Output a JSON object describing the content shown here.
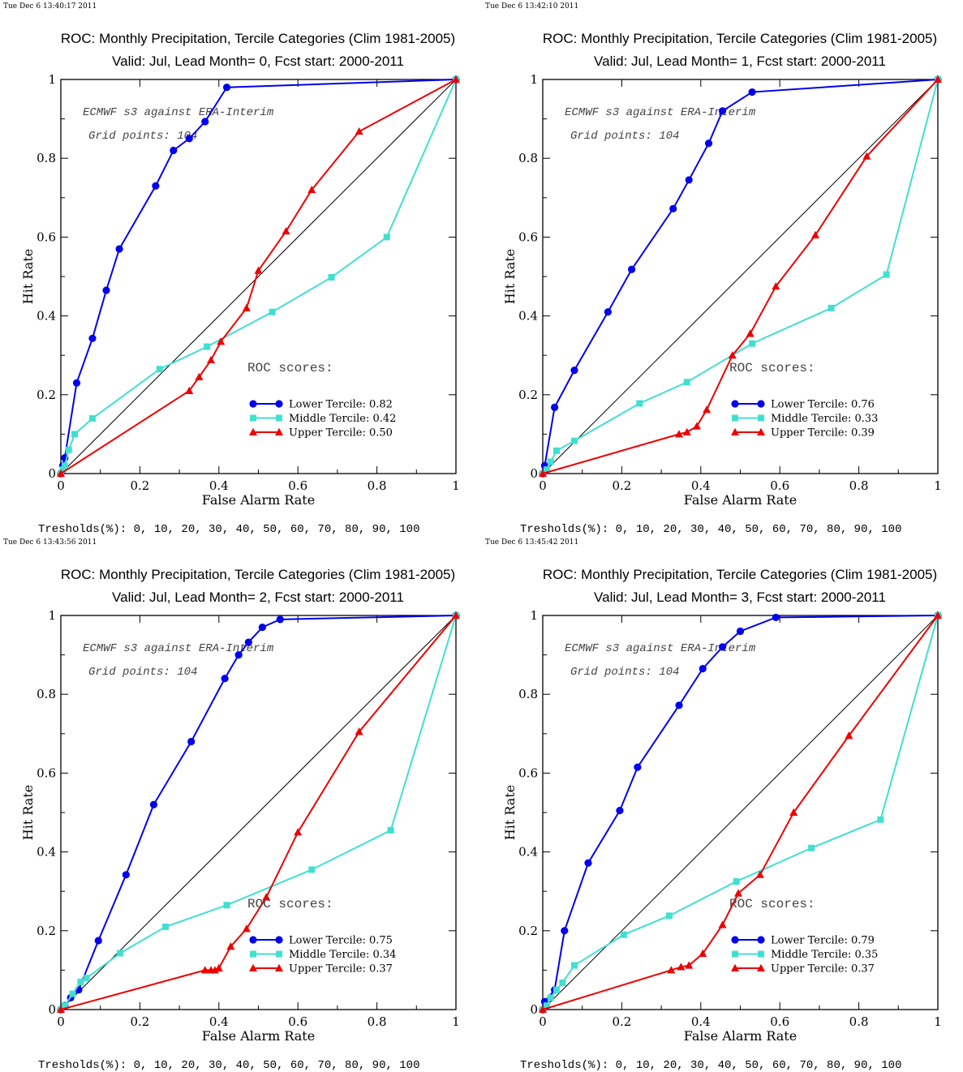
{
  "colors": {
    "lower": "#0000ee",
    "middle": "#40e0d0",
    "upper": "#ee0000",
    "diagonal": "#000000"
  },
  "chart_data": [
    {
      "type": "line",
      "timestamp": "Tue Dec  6 13:40:17 2011",
      "title": "ROC: Monthly Precipitation, Tercile Categories (Clim 1981-2005)",
      "subtitle": "Valid: Jul, Lead Month= 0, Fcst start: 2000-2011",
      "xlabel": "False Alarm Rate",
      "ylabel": "Hit Rate",
      "xlim": [
        0,
        1
      ],
      "ylim": [
        0,
        1
      ],
      "xticks": [
        "0",
        "0.2",
        "0.4",
        "0.6",
        "0.8",
        "1"
      ],
      "yticks": [
        "0",
        "0.2",
        "0.4",
        "0.6",
        "0.8",
        "1"
      ],
      "annotation_model": "ECMWF s3 against ERA-Interim",
      "annotation_grid": "Grid points:  104",
      "roc_header": "ROC scores:",
      "thresholds": "Tresholds(%): 0, 10, 20, 30, 40, 50, 60, 70, 80, 90, 100",
      "series": [
        {
          "name": "Lower Tercile: 0.82",
          "marker": "circle",
          "color": "#0000ee",
          "points": [
            [
              0,
              0
            ],
            [
              0.005,
              0.02
            ],
            [
              0.01,
              0.04
            ],
            [
              0.04,
              0.23
            ],
            [
              0.08,
              0.343
            ],
            [
              0.115,
              0.465
            ],
            [
              0.148,
              0.57
            ],
            [
              0.24,
              0.73
            ],
            [
              0.285,
              0.82
            ],
            [
              0.325,
              0.85
            ],
            [
              0.365,
              0.893
            ],
            [
              0.42,
              0.98
            ],
            [
              1,
              1
            ]
          ]
        },
        {
          "name": "Middle Tercile: 0.42",
          "marker": "square",
          "color": "#40e0d0",
          "points": [
            [
              0,
              0
            ],
            [
              0.005,
              0.01
            ],
            [
              0.01,
              0.02
            ],
            [
              0.02,
              0.06
            ],
            [
              0.035,
              0.1
            ],
            [
              0.08,
              0.14
            ],
            [
              0.25,
              0.265
            ],
            [
              0.37,
              0.322
            ],
            [
              0.535,
              0.41
            ],
            [
              0.685,
              0.498
            ],
            [
              0.825,
              0.6
            ],
            [
              1,
              1
            ]
          ]
        },
        {
          "name": "Upper Tercile: 0.50",
          "marker": "triangle",
          "color": "#ee0000",
          "points": [
            [
              0,
              0
            ],
            [
              0.325,
              0.21
            ],
            [
              0.35,
              0.245
            ],
            [
              0.38,
              0.288
            ],
            [
              0.405,
              0.335
            ],
            [
              0.47,
              0.42
            ],
            [
              0.5,
              0.515
            ],
            [
              0.57,
              0.615
            ],
            [
              0.635,
              0.72
            ],
            [
              0.755,
              0.868
            ],
            [
              1,
              1
            ]
          ]
        }
      ]
    },
    {
      "type": "line",
      "timestamp": "Tue Dec  6 13:42:10 2011",
      "title": "ROC: Monthly Precipitation, Tercile Categories (Clim 1981-2005)",
      "subtitle": "Valid: Jul, Lead Month= 1, Fcst start: 2000-2011",
      "xlabel": "False Alarm Rate",
      "ylabel": "Hit Rate",
      "xlim": [
        0,
        1
      ],
      "ylim": [
        0,
        1
      ],
      "xticks": [
        "0",
        "0.2",
        "0.4",
        "0.6",
        "0.8",
        "1"
      ],
      "yticks": [
        "0",
        "0.2",
        "0.4",
        "0.6",
        "0.8",
        "1"
      ],
      "annotation_model": "ECMWF s3 against ERA-Interim",
      "annotation_grid": "Grid points:  104",
      "roc_header": "ROC scores:",
      "thresholds": "Tresholds(%): 0, 10, 20, 30, 40, 50, 60, 70, 80, 90, 100",
      "series": [
        {
          "name": "Lower Tercile: 0.76",
          "marker": "circle",
          "color": "#0000ee",
          "points": [
            [
              0,
              0
            ],
            [
              0.005,
              0.02
            ],
            [
              0.03,
              0.168
            ],
            [
              0.08,
              0.262
            ],
            [
              0.165,
              0.41
            ],
            [
              0.225,
              0.518
            ],
            [
              0.33,
              0.672
            ],
            [
              0.37,
              0.745
            ],
            [
              0.42,
              0.838
            ],
            [
              0.455,
              0.92
            ],
            [
              0.53,
              0.968
            ],
            [
              1,
              1
            ]
          ]
        },
        {
          "name": "Middle Tercile: 0.33",
          "marker": "square",
          "color": "#40e0d0",
          "points": [
            [
              0,
              0
            ],
            [
              0.01,
              0.01
            ],
            [
              0.02,
              0.03
            ],
            [
              0.035,
              0.058
            ],
            [
              0.08,
              0.083
            ],
            [
              0.245,
              0.178
            ],
            [
              0.365,
              0.232
            ],
            [
              0.53,
              0.33
            ],
            [
              0.73,
              0.42
            ],
            [
              0.87,
              0.505
            ],
            [
              1,
              1
            ]
          ]
        },
        {
          "name": "Upper Tercile: 0.39",
          "marker": "triangle",
          "color": "#ee0000",
          "points": [
            [
              0,
              0
            ],
            [
              0.345,
              0.1
            ],
            [
              0.365,
              0.105
            ],
            [
              0.39,
              0.12
            ],
            [
              0.415,
              0.162
            ],
            [
              0.48,
              0.3
            ],
            [
              0.525,
              0.355
            ],
            [
              0.59,
              0.475
            ],
            [
              0.69,
              0.605
            ],
            [
              0.82,
              0.805
            ],
            [
              1,
              1
            ]
          ]
        }
      ]
    },
    {
      "type": "line",
      "timestamp": "Tue Dec  6 13:43:56 2011",
      "title": "ROC: Monthly Precipitation, Tercile Categories (Clim 1981-2005)",
      "subtitle": "Valid: Jul, Lead Month= 2, Fcst start: 2000-2011",
      "xlabel": "False Alarm Rate",
      "ylabel": "Hit Rate",
      "xlim": [
        0,
        1
      ],
      "ylim": [
        0,
        1
      ],
      "xticks": [
        "0",
        "0.2",
        "0.4",
        "0.6",
        "0.8",
        "1"
      ],
      "yticks": [
        "0",
        "0.2",
        "0.4",
        "0.6",
        "0.8",
        "1"
      ],
      "annotation_model": "ECMWF s3 against ERA-Interim",
      "annotation_grid": "Grid points:  104",
      "roc_header": "ROC scores:",
      "thresholds": "Tresholds(%): 0, 10, 20, 30, 40, 50, 60, 70, 80, 90, 100",
      "series": [
        {
          "name": "Lower Tercile: 0.75",
          "marker": "circle",
          "color": "#0000ee",
          "points": [
            [
              0,
              0
            ],
            [
              0.01,
              0.01
            ],
            [
              0.025,
              0.03
            ],
            [
              0.045,
              0.05
            ],
            [
              0.095,
              0.175
            ],
            [
              0.165,
              0.342
            ],
            [
              0.235,
              0.52
            ],
            [
              0.33,
              0.68
            ],
            [
              0.415,
              0.84
            ],
            [
              0.45,
              0.9
            ],
            [
              0.475,
              0.932
            ],
            [
              0.51,
              0.97
            ],
            [
              0.555,
              0.99
            ],
            [
              1,
              1
            ]
          ]
        },
        {
          "name": "Middle Tercile: 0.34",
          "marker": "square",
          "color": "#40e0d0",
          "points": [
            [
              0,
              0
            ],
            [
              0.01,
              0.01
            ],
            [
              0.03,
              0.04
            ],
            [
              0.05,
              0.07
            ],
            [
              0.065,
              0.08
            ],
            [
              0.15,
              0.143
            ],
            [
              0.265,
              0.21
            ],
            [
              0.42,
              0.265
            ],
            [
              0.635,
              0.355
            ],
            [
              0.835,
              0.455
            ],
            [
              1,
              1
            ]
          ]
        },
        {
          "name": "Upper Tercile: 0.37",
          "marker": "triangle",
          "color": "#ee0000",
          "points": [
            [
              0,
              0
            ],
            [
              0.365,
              0.1
            ],
            [
              0.38,
              0.1
            ],
            [
              0.39,
              0.1
            ],
            [
              0.4,
              0.105
            ],
            [
              0.43,
              0.16
            ],
            [
              0.47,
              0.205
            ],
            [
              0.52,
              0.285
            ],
            [
              0.6,
              0.45
            ],
            [
              0.755,
              0.705
            ],
            [
              1,
              1
            ]
          ]
        }
      ]
    },
    {
      "type": "line",
      "timestamp": "Tue Dec  6 13:45:42 2011",
      "title": "ROC: Monthly Precipitation, Tercile Categories (Clim 1981-2005)",
      "subtitle": "Valid: Jul, Lead Month= 3, Fcst start: 2000-2011",
      "xlabel": "False Alarm Rate",
      "ylabel": "Hit Rate",
      "xlim": [
        0,
        1
      ],
      "ylim": [
        0,
        1
      ],
      "xticks": [
        "0",
        "0.2",
        "0.4",
        "0.6",
        "0.8",
        "1"
      ],
      "yticks": [
        "0",
        "0.2",
        "0.4",
        "0.6",
        "0.8",
        "1"
      ],
      "annotation_model": "ECMWF s3 against ERA-Interim",
      "annotation_grid": "Grid points:  104",
      "roc_header": "ROC scores:",
      "thresholds": "Tresholds(%): 0, 10, 20, 30, 40, 50, 60, 70, 80, 90, 100",
      "series": [
        {
          "name": "Lower Tercile: 0.79",
          "marker": "circle",
          "color": "#0000ee",
          "points": [
            [
              0,
              0
            ],
            [
              0.005,
              0.02
            ],
            [
              0.03,
              0.05
            ],
            [
              0.055,
              0.2
            ],
            [
              0.115,
              0.372
            ],
            [
              0.195,
              0.505
            ],
            [
              0.24,
              0.615
            ],
            [
              0.345,
              0.772
            ],
            [
              0.405,
              0.865
            ],
            [
              0.455,
              0.92
            ],
            [
              0.5,
              0.96
            ],
            [
              0.59,
              0.995
            ],
            [
              1,
              1
            ]
          ]
        },
        {
          "name": "Middle Tercile: 0.35",
          "marker": "square",
          "color": "#40e0d0",
          "points": [
            [
              0,
              0
            ],
            [
              0.01,
              0.01
            ],
            [
              0.02,
              0.03
            ],
            [
              0.035,
              0.05
            ],
            [
              0.05,
              0.068
            ],
            [
              0.08,
              0.112
            ],
            [
              0.205,
              0.19
            ],
            [
              0.32,
              0.238
            ],
            [
              0.49,
              0.325
            ],
            [
              0.68,
              0.41
            ],
            [
              0.855,
              0.482
            ],
            [
              1,
              1
            ]
          ]
        },
        {
          "name": "Upper Tercile: 0.37",
          "marker": "triangle",
          "color": "#ee0000",
          "points": [
            [
              0,
              0
            ],
            [
              0.325,
              0.1
            ],
            [
              0.35,
              0.108
            ],
            [
              0.37,
              0.112
            ],
            [
              0.405,
              0.142
            ],
            [
              0.455,
              0.215
            ],
            [
              0.495,
              0.295
            ],
            [
              0.55,
              0.342
            ],
            [
              0.635,
              0.5
            ],
            [
              0.775,
              0.695
            ],
            [
              1,
              1
            ]
          ]
        }
      ]
    }
  ]
}
